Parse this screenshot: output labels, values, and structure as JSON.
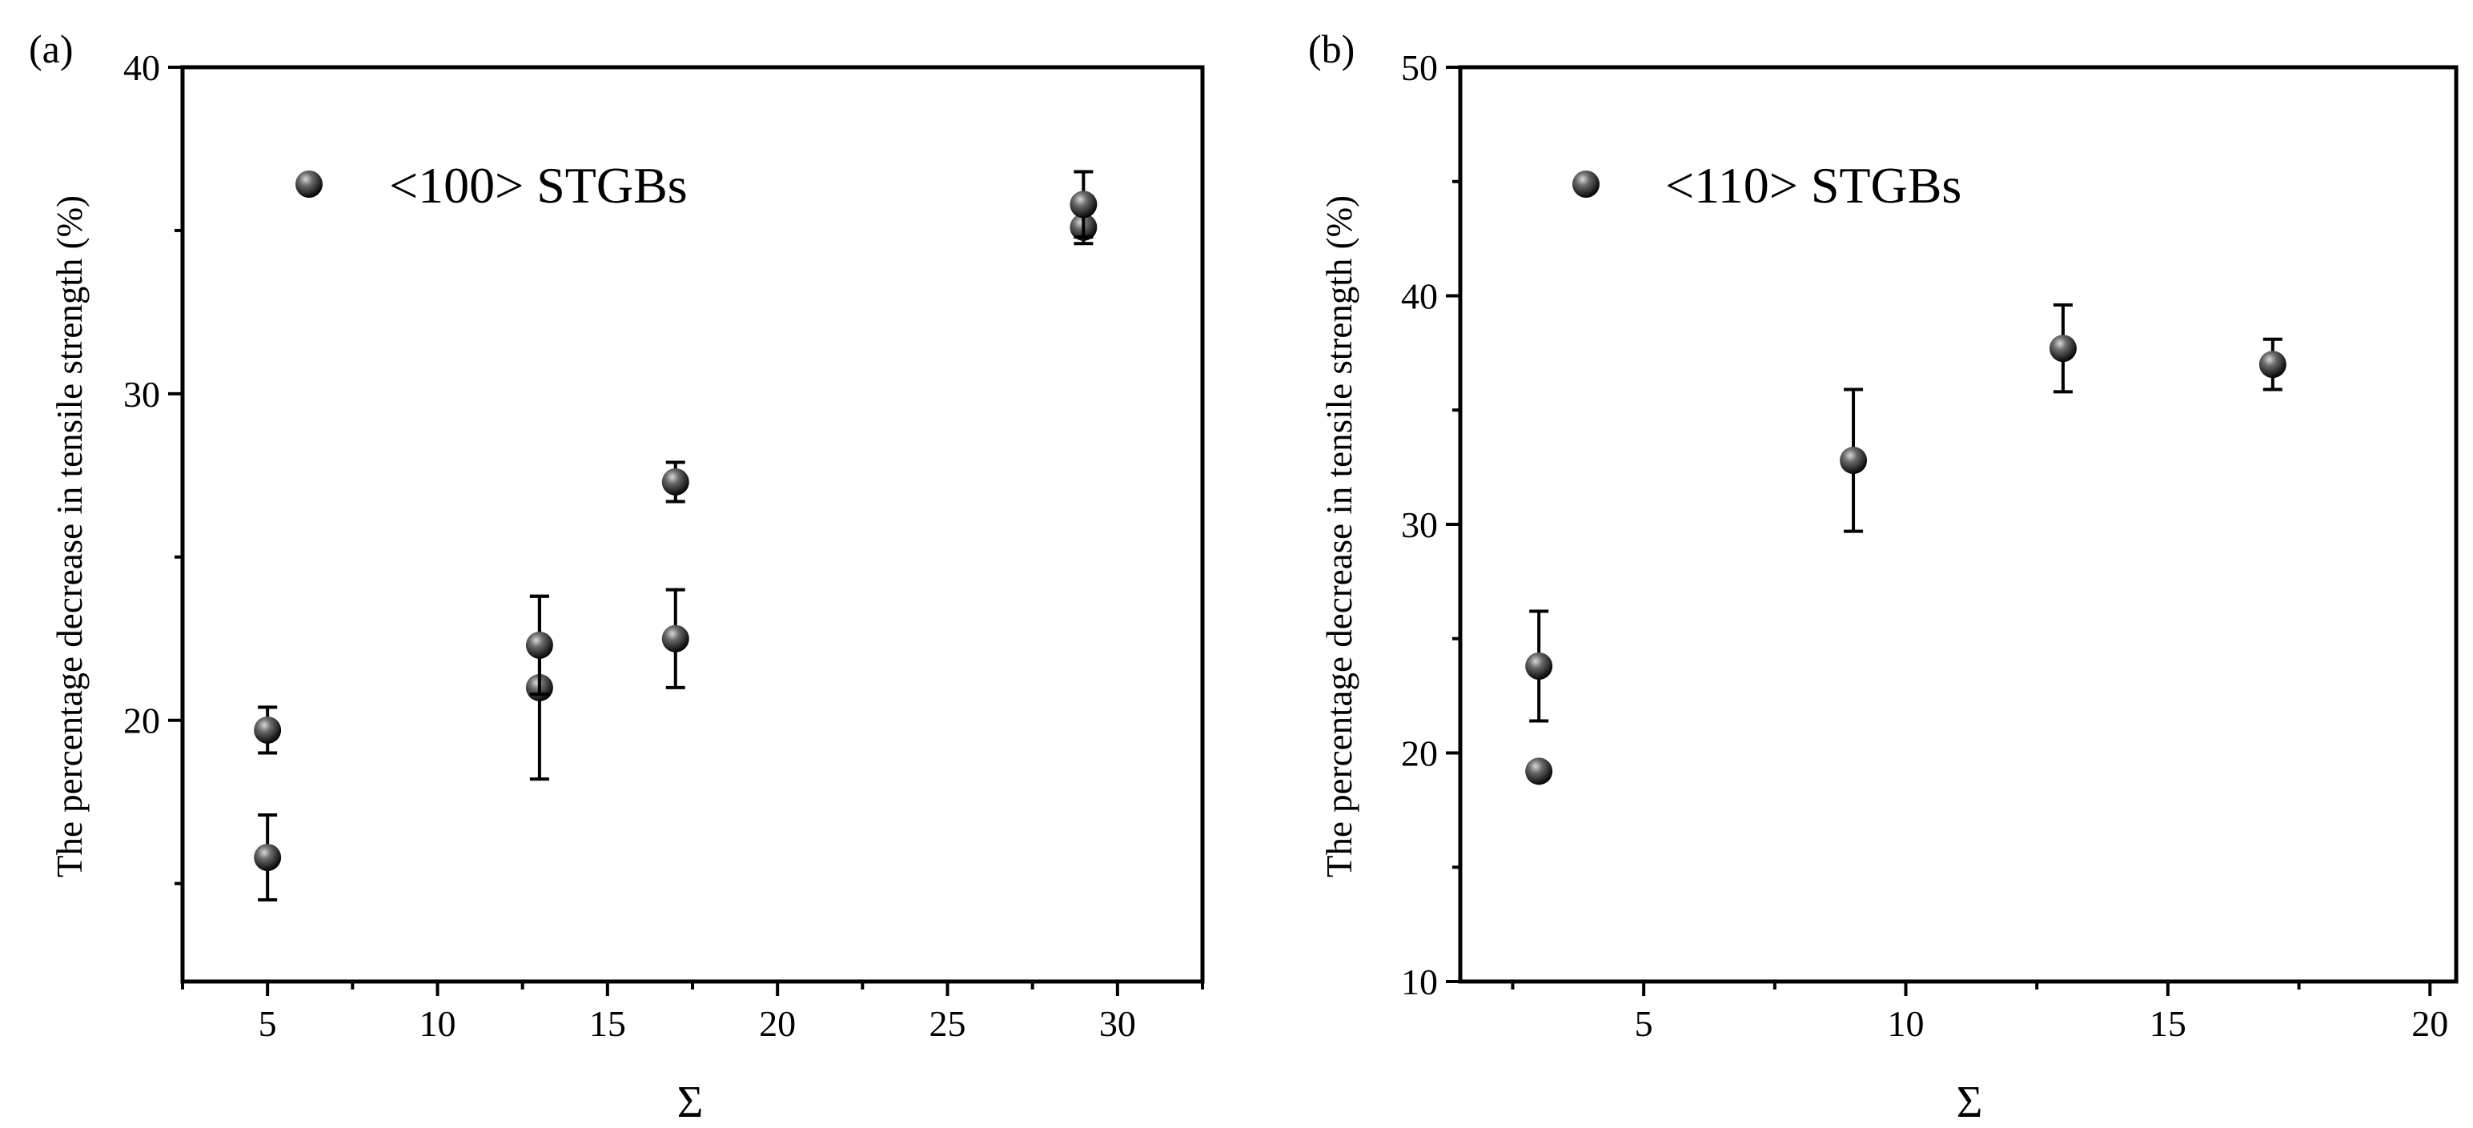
{
  "chart_data": [
    {
      "type": "scatter",
      "panel_label": "(a)",
      "xlabel": "Σ",
      "ylabel": "The percentage decrease in tensile strength (%)",
      "xlim": [
        2.5,
        32.5
      ],
      "ylim": [
        12,
        40
      ],
      "x_ticks": [
        5,
        10,
        15,
        20,
        25,
        30
      ],
      "y_ticks": [
        20,
        30,
        40
      ],
      "legend_placement": "top-left",
      "grid": false,
      "series": [
        {
          "name": "<100> STGBs",
          "points": [
            {
              "x": 5,
              "y": 15.8,
              "err": 1.3
            },
            {
              "x": 5,
              "y": 19.7,
              "err": 0.7
            },
            {
              "x": 13,
              "y": 21.0,
              "err": 2.8
            },
            {
              "x": 13,
              "y": 22.3,
              "err": 1.5
            },
            {
              "x": 17,
              "y": 22.5,
              "err": 1.5
            },
            {
              "x": 17,
              "y": 27.3,
              "err": 0.6
            },
            {
              "x": 29,
              "y": 35.1,
              "err": 0.5
            },
            {
              "x": 29,
              "y": 35.8,
              "err": 1.0
            }
          ]
        }
      ]
    },
    {
      "type": "scatter",
      "panel_label": "(b)",
      "xlabel": "Σ",
      "ylabel": "The percentage decrease in tensile strength (%)",
      "xlim": [
        1.5,
        20.5
      ],
      "ylim": [
        10,
        50
      ],
      "x_ticks": [
        5,
        10,
        15,
        20
      ],
      "y_ticks": [
        10,
        20,
        30,
        40,
        50
      ],
      "legend_placement": "top-left",
      "grid": false,
      "series": [
        {
          "name": "<110> STGBs",
          "points": [
            {
              "x": 3,
              "y": 19.2,
              "err": 0
            },
            {
              "x": 3,
              "y": 23.8,
              "err": 2.4
            },
            {
              "x": 9,
              "y": 32.8,
              "err": 3.1
            },
            {
              "x": 13,
              "y": 37.7,
              "err": 1.9
            },
            {
              "x": 17,
              "y": 37.0,
              "err": 1.1
            }
          ]
        }
      ]
    }
  ],
  "style": {
    "marker_light": "#d8d8d8",
    "marker_dark": "#000000",
    "axis_color": "#000000"
  }
}
